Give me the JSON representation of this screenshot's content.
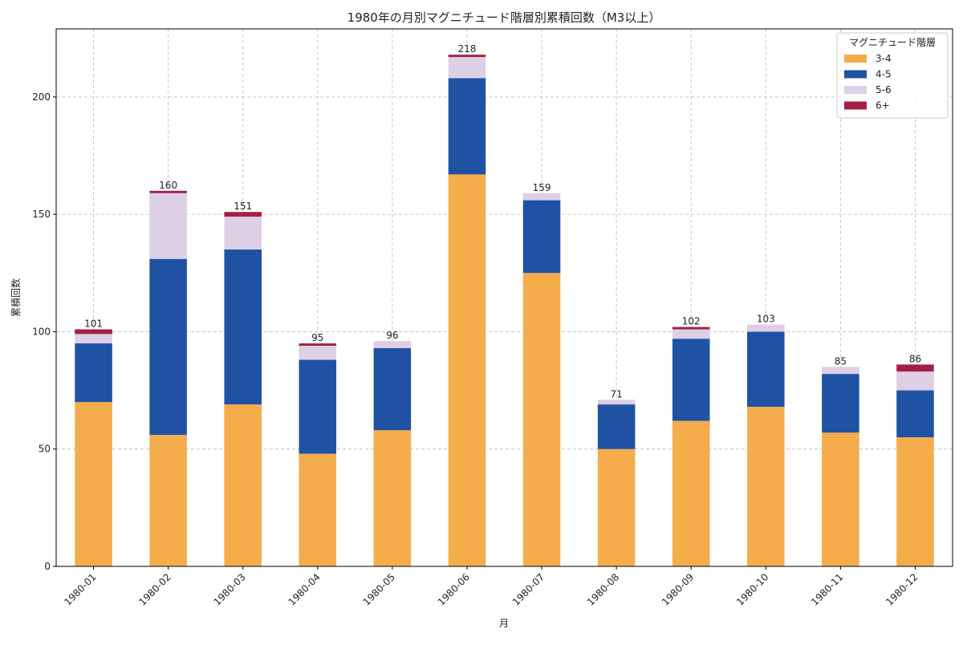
{
  "chart_data": {
    "type": "bar",
    "stacked": true,
    "title": "1980年の月別マグニチュード階層別累積回数（M3以上）",
    "xlabel": "月",
    "ylabel": "累積回数",
    "ylim": [
      0,
      229
    ],
    "yticks": [
      0,
      50,
      100,
      150,
      200
    ],
    "grid": true,
    "legend": {
      "title": "マグニチュード階層",
      "placement": "top-right"
    },
    "categories": [
      "1980-01",
      "1980-02",
      "1980-03",
      "1980-04",
      "1980-05",
      "1980-06",
      "1980-07",
      "1980-08",
      "1980-09",
      "1980-10",
      "1980-11",
      "1980-12"
    ],
    "series": [
      {
        "name": "3-4",
        "color": "#f5ac4a",
        "values": [
          70,
          56,
          69,
          48,
          58,
          167,
          125,
          50,
          62,
          68,
          57,
          55
        ]
      },
      {
        "name": "4-5",
        "color": "#1f52a3",
        "values": [
          25,
          75,
          66,
          40,
          35,
          41,
          31,
          19,
          35,
          32,
          25,
          20
        ]
      },
      {
        "name": "5-6",
        "color": "#dccfe6",
        "values": [
          4,
          28,
          14,
          6,
          3,
          9,
          3,
          2,
          4,
          3,
          3,
          8
        ]
      },
      {
        "name": "6+",
        "color": "#a41f45",
        "values": [
          2,
          1,
          2,
          1,
          0,
          1,
          0,
          0,
          1,
          0,
          0,
          3
        ]
      }
    ],
    "totals": [
      101,
      160,
      151,
      95,
      96,
      218,
      159,
      71,
      102,
      103,
      85,
      86
    ]
  }
}
